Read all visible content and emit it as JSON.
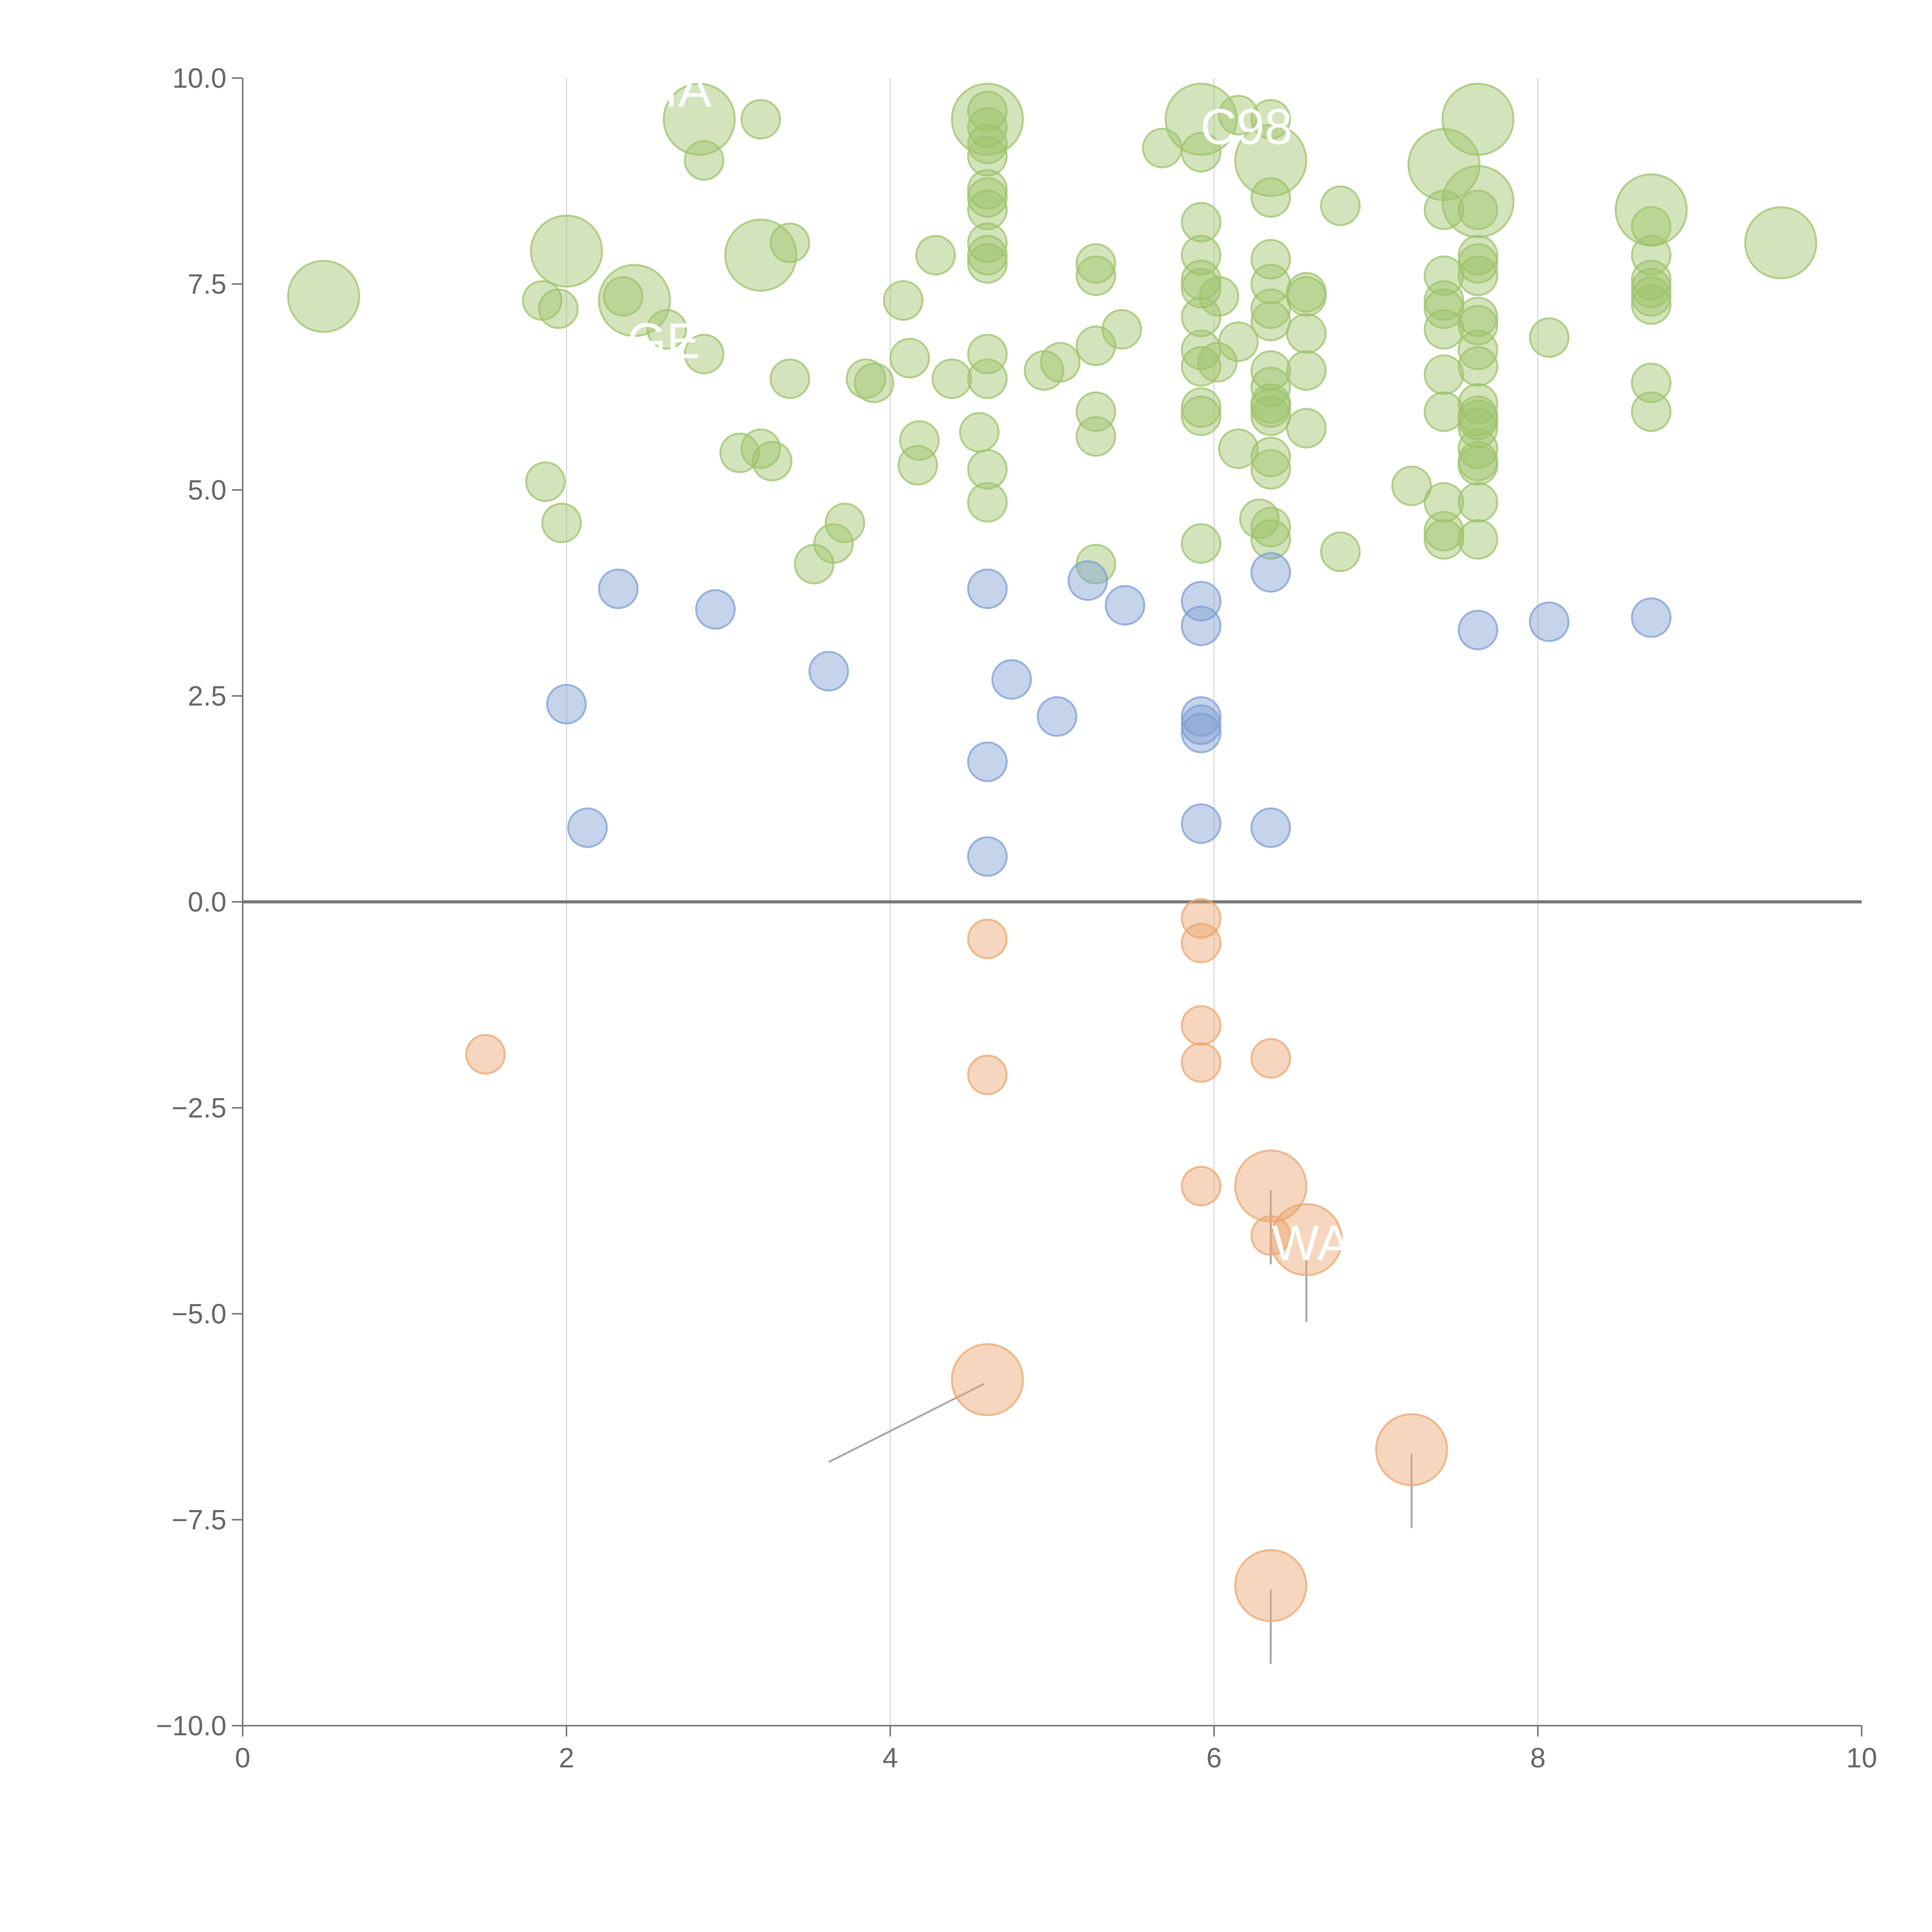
{
  "chart_data": {
    "type": "scatter",
    "title": "",
    "xlabel": "",
    "ylabel": "",
    "xlim": [
      0,
      10
    ],
    "ylim": [
      -10,
      10
    ],
    "xticks": [
      0,
      2,
      4,
      6,
      8,
      10
    ],
    "yticks": [
      -10,
      -7.5,
      -5,
      -2.5,
      0,
      2.5,
      5,
      7.5,
      10
    ],
    "x_tick_labels": [
      "0",
      "2",
      "4",
      "6",
      "8",
      "10"
    ],
    "y_tick_labels": [
      "−10.0",
      "−7.5",
      "−5.0",
      "−2.5",
      "0.0",
      "2.5",
      "5.0",
      "7.5",
      "10.0"
    ],
    "grid": "vertical",
    "colors": {
      "high": "#9dc36b",
      "mid": "#7e9fd3",
      "low": "#eca56f",
      "axis": "#777777",
      "grid": "#d9d9d9",
      "leader": "#a8a8a8"
    },
    "series": [
      {
        "name": "high",
        "color": "#9dc36b",
        "points": [
          [
            0.5,
            7.35,
            2
          ],
          [
            1.85,
            7.3,
            1
          ],
          [
            1.95,
            7.2,
            1
          ],
          [
            2.0,
            7.9,
            2
          ],
          [
            1.87,
            5.1,
            1
          ],
          [
            1.97,
            4.6,
            1
          ],
          [
            2.35,
            7.35,
            1
          ],
          [
            2.42,
            7.3,
            2
          ],
          [
            2.62,
            6.95,
            1
          ],
          [
            2.82,
            9.5,
            2
          ],
          [
            2.85,
            9.0,
            1
          ],
          [
            2.85,
            6.65,
            1
          ],
          [
            3.2,
            9.5,
            1
          ],
          [
            3.2,
            7.85,
            2
          ],
          [
            3.38,
            8.0,
            1
          ],
          [
            3.38,
            6.35,
            1
          ],
          [
            3.07,
            5.45,
            1
          ],
          [
            3.2,
            5.5,
            1
          ],
          [
            3.27,
            5.35,
            1
          ],
          [
            3.53,
            4.1,
            1
          ],
          [
            3.65,
            4.35,
            1
          ],
          [
            3.72,
            4.6,
            1
          ],
          [
            3.85,
            6.35,
            1
          ],
          [
            3.9,
            6.3,
            1
          ],
          [
            4.08,
            7.3,
            1
          ],
          [
            4.12,
            6.6,
            1
          ],
          [
            4.18,
            5.6,
            1
          ],
          [
            4.17,
            5.3,
            1
          ],
          [
            4.28,
            7.85,
            1
          ],
          [
            4.38,
            6.35,
            1
          ],
          [
            4.55,
            5.7,
            1
          ],
          [
            4.6,
            9.5,
            2
          ],
          [
            4.6,
            9.6,
            1
          ],
          [
            4.6,
            9.4,
            1
          ],
          [
            4.6,
            9.2,
            1
          ],
          [
            4.6,
            9.05,
            1
          ],
          [
            4.6,
            8.65,
            1
          ],
          [
            4.6,
            8.55,
            1
          ],
          [
            4.6,
            8.4,
            1
          ],
          [
            4.6,
            8.0,
            1
          ],
          [
            4.6,
            7.85,
            1
          ],
          [
            4.6,
            7.75,
            1
          ],
          [
            4.6,
            6.65,
            1
          ],
          [
            4.6,
            6.35,
            1
          ],
          [
            4.6,
            5.25,
            1
          ],
          [
            4.6,
            4.85,
            1
          ],
          [
            4.95,
            6.45,
            1
          ],
          [
            5.05,
            6.55,
            1
          ],
          [
            5.27,
            7.75,
            1
          ],
          [
            5.27,
            7.6,
            1
          ],
          [
            5.27,
            6.75,
            1
          ],
          [
            5.27,
            5.95,
            1
          ],
          [
            5.27,
            5.65,
            1
          ],
          [
            5.27,
            4.1,
            1
          ],
          [
            5.43,
            6.95,
            1
          ],
          [
            5.68,
            9.15,
            1
          ],
          [
            5.92,
            9.5,
            2
          ],
          [
            5.92,
            9.1,
            1
          ],
          [
            5.92,
            8.25,
            1
          ],
          [
            5.92,
            7.85,
            1
          ],
          [
            5.92,
            7.55,
            1
          ],
          [
            5.92,
            7.45,
            1
          ],
          [
            5.92,
            7.1,
            1
          ],
          [
            5.92,
            6.7,
            1
          ],
          [
            5.92,
            6.5,
            1
          ],
          [
            5.92,
            6.0,
            1
          ],
          [
            5.92,
            5.9,
            1
          ],
          [
            5.92,
            4.35,
            1
          ],
          [
            6.03,
            7.35,
            1
          ],
          [
            6.02,
            6.55,
            1
          ],
          [
            6.15,
            6.8,
            1
          ],
          [
            6.15,
            5.5,
            1
          ],
          [
            6.15,
            9.55,
            1
          ],
          [
            6.28,
            4.65,
            1
          ],
          [
            6.35,
            9.5,
            1
          ],
          [
            6.35,
            9.0,
            2
          ],
          [
            6.35,
            8.55,
            1
          ],
          [
            6.35,
            7.8,
            1
          ],
          [
            6.35,
            7.5,
            1
          ],
          [
            6.35,
            7.2,
            1
          ],
          [
            6.35,
            7.05,
            1
          ],
          [
            6.35,
            6.45,
            1
          ],
          [
            6.35,
            6.25,
            1
          ],
          [
            6.35,
            6.05,
            1
          ],
          [
            6.35,
            6.0,
            1
          ],
          [
            6.35,
            5.9,
            1
          ],
          [
            6.35,
            5.4,
            1
          ],
          [
            6.35,
            5.25,
            1
          ],
          [
            6.35,
            4.55,
            1
          ],
          [
            6.35,
            4.4,
            1
          ],
          [
            6.57,
            7.4,
            1
          ],
          [
            6.57,
            7.35,
            1
          ],
          [
            6.57,
            6.9,
            1
          ],
          [
            6.57,
            6.45,
            1
          ],
          [
            6.57,
            5.75,
            1
          ],
          [
            6.78,
            8.45,
            1
          ],
          [
            6.78,
            4.25,
            1
          ],
          [
            7.22,
            5.05,
            1
          ],
          [
            7.42,
            8.95,
            2
          ],
          [
            7.42,
            8.4,
            1
          ],
          [
            7.42,
            7.6,
            1
          ],
          [
            7.42,
            7.3,
            1
          ],
          [
            7.42,
            7.2,
            1
          ],
          [
            7.42,
            6.95,
            1
          ],
          [
            7.42,
            6.4,
            1
          ],
          [
            7.42,
            5.95,
            1
          ],
          [
            7.42,
            4.85,
            1
          ],
          [
            7.42,
            4.5,
            1
          ],
          [
            7.42,
            4.4,
            1
          ],
          [
            7.63,
            9.5,
            2
          ],
          [
            7.63,
            8.5,
            2
          ],
          [
            7.63,
            8.4,
            1
          ],
          [
            7.63,
            7.85,
            1
          ],
          [
            7.63,
            7.75,
            1
          ],
          [
            7.63,
            7.6,
            1
          ],
          [
            7.63,
            7.1,
            1
          ],
          [
            7.63,
            7.0,
            1
          ],
          [
            7.63,
            6.7,
            1
          ],
          [
            7.63,
            6.5,
            1
          ],
          [
            7.63,
            6.05,
            1
          ],
          [
            7.63,
            5.9,
            1
          ],
          [
            7.63,
            5.85,
            1
          ],
          [
            7.63,
            5.75,
            1
          ],
          [
            7.63,
            5.5,
            1
          ],
          [
            7.63,
            5.35,
            1
          ],
          [
            7.63,
            5.3,
            1
          ],
          [
            7.63,
            4.85,
            1
          ],
          [
            7.63,
            4.4,
            1
          ],
          [
            8.07,
            6.85,
            1
          ],
          [
            8.7,
            8.4,
            2
          ],
          [
            8.7,
            8.2,
            1
          ],
          [
            8.7,
            7.85,
            1
          ],
          [
            8.7,
            7.55,
            1
          ],
          [
            8.7,
            7.45,
            1
          ],
          [
            8.7,
            7.35,
            1
          ],
          [
            8.7,
            7.25,
            1
          ],
          [
            8.7,
            6.3,
            1
          ],
          [
            8.7,
            5.95,
            1
          ],
          [
            9.5,
            8.0,
            2
          ]
        ]
      },
      {
        "name": "mid",
        "color": "#7e9fd3",
        "points": [
          [
            2.32,
            3.8,
            1
          ],
          [
            2.0,
            2.4,
            1
          ],
          [
            2.13,
            0.9,
            1
          ],
          [
            2.92,
            3.55,
            1
          ],
          [
            3.62,
            2.8,
            1
          ],
          [
            4.6,
            3.8,
            1
          ],
          [
            4.6,
            1.7,
            1
          ],
          [
            4.6,
            0.55,
            1
          ],
          [
            4.75,
            2.7,
            1
          ],
          [
            5.03,
            2.25,
            1
          ],
          [
            5.22,
            3.9,
            1
          ],
          [
            5.45,
            3.6,
            1
          ],
          [
            5.92,
            3.65,
            1
          ],
          [
            5.92,
            3.35,
            1
          ],
          [
            5.92,
            2.25,
            1
          ],
          [
            5.92,
            2.15,
            1
          ],
          [
            5.92,
            2.05,
            1
          ],
          [
            5.92,
            0.95,
            1
          ],
          [
            6.35,
            4.0,
            1
          ],
          [
            6.35,
            0.9,
            1
          ],
          [
            7.63,
            3.3,
            1
          ],
          [
            8.07,
            3.4,
            1
          ],
          [
            8.7,
            3.45,
            1
          ]
        ]
      },
      {
        "name": "low",
        "color": "#eca56f",
        "points": [
          [
            1.5,
            -1.85,
            1
          ],
          [
            4.6,
            -0.45,
            1
          ],
          [
            4.6,
            -2.1,
            1
          ],
          [
            4.6,
            -5.8,
            2
          ],
          [
            5.92,
            -0.2,
            1
          ],
          [
            5.92,
            -0.5,
            1
          ],
          [
            5.92,
            -1.5,
            1
          ],
          [
            5.92,
            -1.95,
            1
          ],
          [
            5.92,
            -3.45,
            1
          ],
          [
            6.35,
            -1.9,
            1
          ],
          [
            6.35,
            -3.45,
            2
          ],
          [
            6.35,
            -4.05,
            1
          ],
          [
            6.57,
            -4.1,
            2
          ],
          [
            6.35,
            -8.3,
            2
          ],
          [
            7.22,
            -6.65,
            2
          ]
        ]
      }
    ],
    "labels": [
      {
        "text": "IA",
        "x": 2.75,
        "y": 9.65
      },
      {
        "text": "C98",
        "x": 6.2,
        "y": 9.2
      },
      {
        "text": "GE",
        "x": 2.6,
        "y": 6.6
      },
      {
        "text": "WA",
        "x": 6.6,
        "y": -4.35
      }
    ],
    "leader_lines": [
      {
        "x1": 4.58,
        "y1": -5.85,
        "x2": 3.62,
        "y2": -6.8
      },
      {
        "x1": 6.35,
        "y1": -3.5,
        "x2": 6.35,
        "y2": -4.4
      },
      {
        "x1": 6.57,
        "y1": -4.35,
        "x2": 6.57,
        "y2": -5.1
      },
      {
        "x1": 7.22,
        "y1": -6.7,
        "x2": 7.22,
        "y2": -7.6
      },
      {
        "x1": 6.35,
        "y1": -8.35,
        "x2": 6.35,
        "y2": -9.25
      }
    ]
  }
}
